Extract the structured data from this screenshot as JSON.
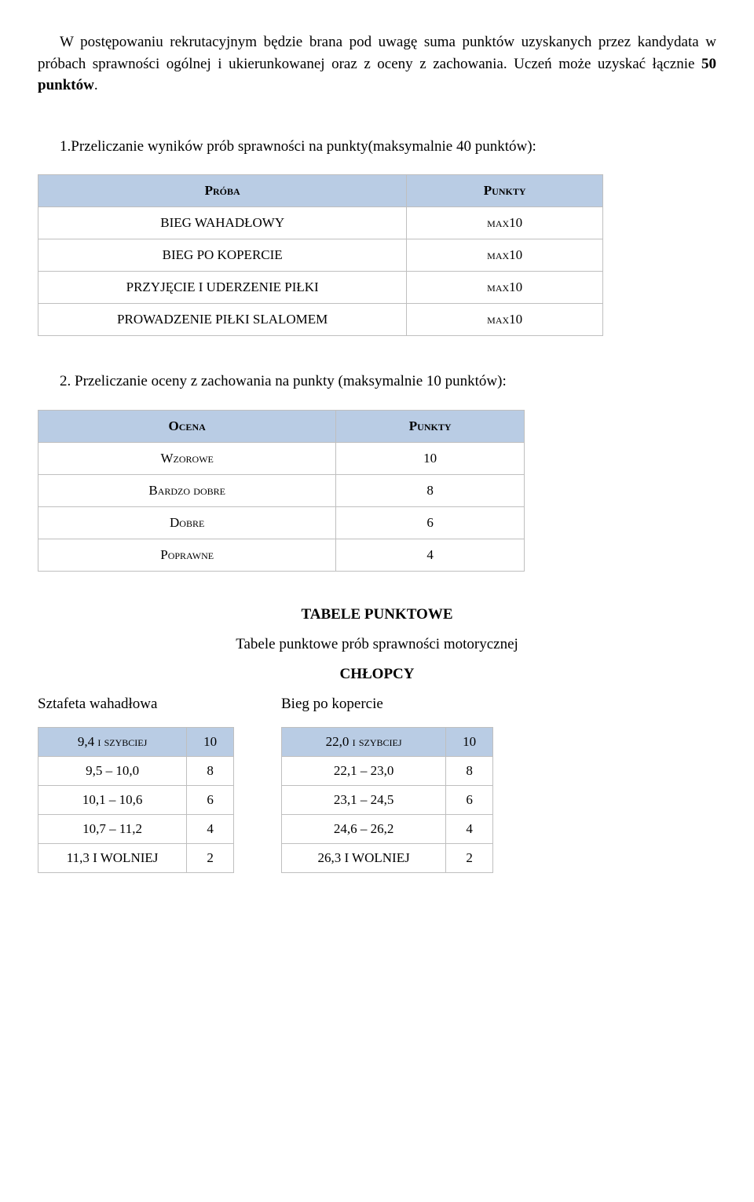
{
  "intro": {
    "text_prefix": "W postępowaniu rekrutacyjnym będzie brana pod uwagę suma punktów uzyskanych przez kandydata w próbach sprawności ogólnej i ukierunkowanej oraz z oceny z zachowania. Uczeń może uzyskać łącznie ",
    "bold": "50 punktów",
    "suffix": "."
  },
  "section1": {
    "lead": "1.Przeliczanie wyników prób sprawności na punkty(maksymalnie 40 punktów):",
    "header_bg": "#b9cce4",
    "cols": [
      "Próba",
      "Punkty"
    ],
    "rows": [
      {
        "label": "BIEG WAHADŁOWY",
        "value": "max10"
      },
      {
        "label": "BIEG PO KOPERCIE",
        "value": "max10"
      },
      {
        "label": "PRZYJĘCIE I UDERZENIE PIŁKI",
        "value": "max10"
      },
      {
        "label": "PROWADZENIE PIŁKI SLALOMEM",
        "value": "max10"
      }
    ]
  },
  "section2": {
    "lead": "2. Przeliczanie oceny z zachowania na punkty (maksymalnie 10 punktów):",
    "header_bg": "#b9cce4",
    "cols": [
      "Ocena",
      "Punkty"
    ],
    "rows": [
      {
        "label": "Wzorowe",
        "value": "10"
      },
      {
        "label": "Bardzo dobre",
        "value": "8"
      },
      {
        "label": "Dobre",
        "value": "6"
      },
      {
        "label": "Poprawne",
        "value": "4"
      }
    ]
  },
  "tables_heading": {
    "title": "TABELE PUNKTOWE",
    "subtitle": "Tabele punktowe prób sprawności motorycznej",
    "group": "CHŁOPCY"
  },
  "left_table": {
    "title": "Sztafeta wahadłowa",
    "header_bg": "#b9cce4",
    "rows": [
      {
        "label": "9,4  i szybciej",
        "value": "10",
        "shaded": true
      },
      {
        "label": "9,5 – 10,0",
        "value": "8"
      },
      {
        "label": "10,1 – 10,6",
        "value": "6"
      },
      {
        "label": "10,7 – 11,2",
        "value": "4"
      },
      {
        "label": "11,3  I WOLNIEJ",
        "value": "2"
      }
    ]
  },
  "right_table": {
    "title": "Bieg po kopercie",
    "header_bg": "#b9cce4",
    "rows": [
      {
        "label": "22,0 i szybciej",
        "value": "10",
        "shaded": true
      },
      {
        "label": "22,1 – 23,0",
        "value": "8"
      },
      {
        "label": "23,1 – 24,5",
        "value": "6"
      },
      {
        "label": "24,6 – 26,2",
        "value": "4"
      },
      {
        "label": "26,3  I WOLNIEJ",
        "value": "2"
      }
    ]
  }
}
